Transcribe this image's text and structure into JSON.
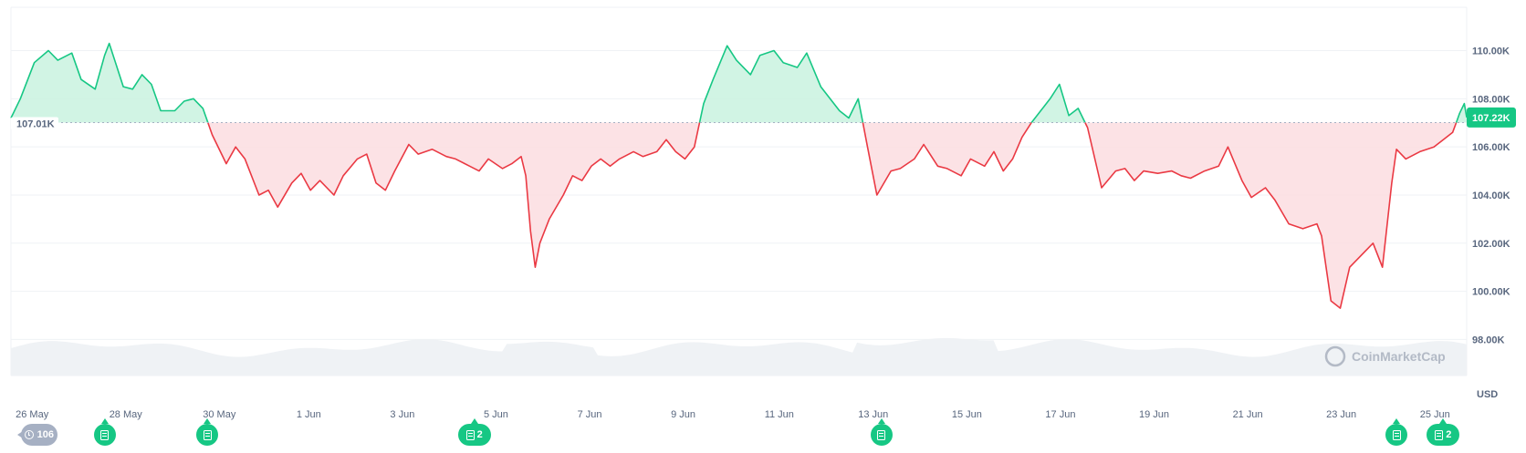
{
  "chart_data": {
    "type": "line",
    "baseline": 107.01,
    "baseline_label": "107.01K",
    "current_label": "107.22K",
    "unit_label": "USD",
    "watermark": "CoinMarketCap",
    "ylim": [
      96.5,
      111.8
    ],
    "yticks": [
      {
        "value": 110,
        "label": "110.00K"
      },
      {
        "value": 108,
        "label": "108.00K"
      },
      {
        "value": 106,
        "label": "106.00K"
      },
      {
        "value": 104,
        "label": "104.00K"
      },
      {
        "value": 102,
        "label": "102.00K"
      },
      {
        "value": 100,
        "label": "100.00K"
      },
      {
        "value": 98,
        "label": "98.00K"
      }
    ],
    "xlim": [
      0,
      31.1
    ],
    "xticks": [
      {
        "day": 0.1,
        "label": "26 May"
      },
      {
        "day": 2.1,
        "label": "28 May"
      },
      {
        "day": 4.1,
        "label": "30 May"
      },
      {
        "day": 6.1,
        "label": "1 Jun"
      },
      {
        "day": 8.1,
        "label": "3 Jun"
      },
      {
        "day": 10.1,
        "label": "5 Jun"
      },
      {
        "day": 12.1,
        "label": "7 Jun"
      },
      {
        "day": 14.1,
        "label": "9 Jun"
      },
      {
        "day": 16.1,
        "label": "11 Jun"
      },
      {
        "day": 18.1,
        "label": "13 Jun"
      },
      {
        "day": 20.1,
        "label": "15 Jun"
      },
      {
        "day": 22.1,
        "label": "17 Jun"
      },
      {
        "day": 24.1,
        "label": "19 Jun"
      },
      {
        "day": 26.1,
        "label": "21 Jun"
      },
      {
        "day": 28.1,
        "label": "23 Jun"
      },
      {
        "day": 30.1,
        "label": "25 Jun"
      }
    ],
    "series": [
      {
        "points": [
          [
            0.0,
            107.2
          ],
          [
            0.2,
            108.0
          ],
          [
            0.5,
            109.5
          ],
          [
            0.8,
            110.0
          ],
          [
            1.0,
            109.6
          ],
          [
            1.3,
            109.9
          ],
          [
            1.5,
            108.8
          ],
          [
            1.8,
            108.4
          ],
          [
            2.0,
            109.8
          ],
          [
            2.1,
            110.3
          ],
          [
            2.4,
            108.5
          ],
          [
            2.6,
            108.4
          ],
          [
            2.8,
            109.0
          ],
          [
            3.0,
            108.6
          ],
          [
            3.2,
            107.5
          ],
          [
            3.5,
            107.5
          ],
          [
            3.7,
            107.9
          ],
          [
            3.9,
            108.0
          ],
          [
            4.1,
            107.6
          ],
          [
            4.3,
            106.5
          ],
          [
            4.6,
            105.3
          ],
          [
            4.8,
            106.0
          ],
          [
            5.0,
            105.5
          ],
          [
            5.3,
            104.0
          ],
          [
            5.5,
            104.2
          ],
          [
            5.7,
            103.5
          ],
          [
            6.0,
            104.5
          ],
          [
            6.2,
            104.9
          ],
          [
            6.4,
            104.2
          ],
          [
            6.6,
            104.6
          ],
          [
            6.9,
            104.0
          ],
          [
            7.1,
            104.8
          ],
          [
            7.4,
            105.5
          ],
          [
            7.6,
            105.7
          ],
          [
            7.8,
            104.5
          ],
          [
            8.0,
            104.2
          ],
          [
            8.2,
            105.0
          ],
          [
            8.5,
            106.1
          ],
          [
            8.7,
            105.7
          ],
          [
            9.0,
            105.9
          ],
          [
            9.3,
            105.6
          ],
          [
            9.5,
            105.5
          ],
          [
            9.8,
            105.2
          ],
          [
            10.0,
            105.0
          ],
          [
            10.2,
            105.5
          ],
          [
            10.5,
            105.1
          ],
          [
            10.7,
            105.3
          ],
          [
            10.9,
            105.6
          ],
          [
            11.0,
            104.8
          ],
          [
            11.1,
            102.5
          ],
          [
            11.2,
            101.0
          ],
          [
            11.3,
            102.0
          ],
          [
            11.5,
            103.0
          ],
          [
            11.8,
            104.0
          ],
          [
            12.0,
            104.8
          ],
          [
            12.2,
            104.6
          ],
          [
            12.4,
            105.2
          ],
          [
            12.6,
            105.5
          ],
          [
            12.8,
            105.2
          ],
          [
            13.0,
            105.5
          ],
          [
            13.3,
            105.8
          ],
          [
            13.5,
            105.6
          ],
          [
            13.8,
            105.8
          ],
          [
            14.0,
            106.3
          ],
          [
            14.2,
            105.8
          ],
          [
            14.4,
            105.5
          ],
          [
            14.6,
            106.0
          ],
          [
            14.8,
            107.8
          ],
          [
            15.0,
            108.8
          ],
          [
            15.3,
            110.2
          ],
          [
            15.5,
            109.6
          ],
          [
            15.8,
            109.0
          ],
          [
            16.0,
            109.8
          ],
          [
            16.3,
            110.0
          ],
          [
            16.5,
            109.5
          ],
          [
            16.8,
            109.3
          ],
          [
            17.0,
            109.9
          ],
          [
            17.3,
            108.5
          ],
          [
            17.5,
            108.0
          ],
          [
            17.7,
            107.5
          ],
          [
            17.9,
            107.2
          ],
          [
            18.1,
            108.0
          ],
          [
            18.3,
            106.0
          ],
          [
            18.5,
            104.0
          ],
          [
            18.8,
            105.0
          ],
          [
            19.0,
            105.1
          ],
          [
            19.3,
            105.5
          ],
          [
            19.5,
            106.1
          ],
          [
            19.8,
            105.2
          ],
          [
            20.0,
            105.1
          ],
          [
            20.3,
            104.8
          ],
          [
            20.5,
            105.5
          ],
          [
            20.8,
            105.2
          ],
          [
            21.0,
            105.8
          ],
          [
            21.2,
            105.0
          ],
          [
            21.4,
            105.5
          ],
          [
            21.6,
            106.4
          ],
          [
            21.8,
            107.0
          ],
          [
            22.0,
            107.5
          ],
          [
            22.2,
            108.0
          ],
          [
            22.4,
            108.6
          ],
          [
            22.6,
            107.3
          ],
          [
            22.8,
            107.6
          ],
          [
            23.0,
            106.8
          ],
          [
            23.3,
            104.3
          ],
          [
            23.6,
            105.0
          ],
          [
            23.8,
            105.1
          ],
          [
            24.0,
            104.6
          ],
          [
            24.2,
            105.0
          ],
          [
            24.5,
            104.9
          ],
          [
            24.8,
            105.0
          ],
          [
            25.0,
            104.8
          ],
          [
            25.2,
            104.7
          ],
          [
            25.5,
            105.0
          ],
          [
            25.8,
            105.2
          ],
          [
            26.0,
            106.0
          ],
          [
            26.3,
            104.6
          ],
          [
            26.5,
            103.9
          ],
          [
            26.8,
            104.3
          ],
          [
            27.0,
            103.8
          ],
          [
            27.3,
            102.8
          ],
          [
            27.6,
            102.6
          ],
          [
            27.9,
            102.8
          ],
          [
            28.0,
            102.3
          ],
          [
            28.2,
            99.6
          ],
          [
            28.4,
            99.3
          ],
          [
            28.6,
            101.0
          ],
          [
            28.9,
            101.6
          ],
          [
            29.1,
            102.0
          ],
          [
            29.3,
            101.0
          ],
          [
            29.5,
            104.5
          ],
          [
            29.6,
            105.9
          ],
          [
            29.8,
            105.5
          ],
          [
            30.1,
            105.8
          ],
          [
            30.4,
            106.0
          ],
          [
            30.6,
            106.3
          ],
          [
            30.8,
            106.6
          ],
          [
            30.95,
            107.4
          ],
          [
            31.05,
            107.8
          ],
          [
            31.1,
            107.22
          ]
        ]
      }
    ],
    "volume_note": "",
    "colors": {
      "up": "#16c784",
      "down": "#ea3943",
      "up_fill": "#c9f2df",
      "down_fill": "#fbdde0",
      "grid": "#eff2f5",
      "volume": "#eff2f5"
    }
  },
  "markers": [
    {
      "kind": "history",
      "label": "106",
      "day": 0.6
    },
    {
      "kind": "news",
      "label": "",
      "day": 2.0
    },
    {
      "kind": "news",
      "label": "",
      "day": 4.2
    },
    {
      "kind": "news",
      "label": "2",
      "day": 9.9
    },
    {
      "kind": "news",
      "label": "",
      "day": 18.6
    },
    {
      "kind": "news",
      "label": "",
      "day": 29.6
    },
    {
      "kind": "news",
      "label": "2",
      "day": 30.6
    }
  ]
}
